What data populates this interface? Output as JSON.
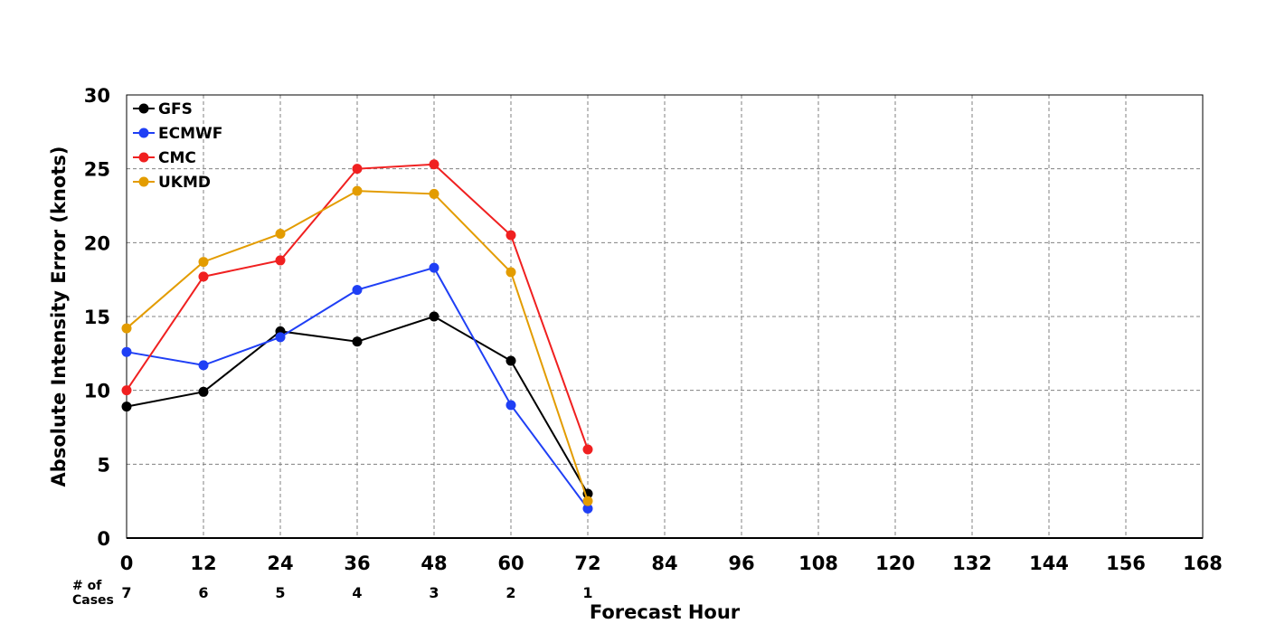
{
  "chart_data": {
    "type": "line",
    "title": "",
    "xlabel": "Forecast Hour",
    "ylabel": "Absolute Intensity Error (knots)",
    "xlim": [
      0,
      168
    ],
    "ylim": [
      0,
      30
    ],
    "x_ticks": [
      0,
      12,
      24,
      36,
      48,
      60,
      72,
      84,
      96,
      108,
      120,
      132,
      144,
      156,
      168
    ],
    "y_ticks": [
      0,
      5,
      10,
      15,
      20,
      25,
      30
    ],
    "grid": true,
    "legend_position": "top-left",
    "x": [
      0,
      12,
      24,
      36,
      48,
      60,
      72
    ],
    "series": [
      {
        "name": "GFS",
        "color": "#000000",
        "values": [
          8.9,
          9.9,
          14.0,
          13.3,
          15.0,
          12.0,
          3.0
        ]
      },
      {
        "name": "ECMWF",
        "color": "#1f3ff5",
        "values": [
          12.6,
          11.7,
          13.6,
          16.8,
          18.3,
          9.0,
          2.0
        ]
      },
      {
        "name": "CMC",
        "color": "#f02020",
        "values": [
          10.0,
          17.7,
          18.8,
          25.0,
          25.3,
          20.5,
          6.0
        ]
      },
      {
        "name": "UKMD",
        "color": "#e39c00",
        "values": [
          14.2,
          18.7,
          20.6,
          23.5,
          23.3,
          18.0,
          2.5
        ]
      }
    ],
    "cases_label": "# of Cases",
    "cases": [
      7,
      6,
      5,
      4,
      3,
      2,
      1
    ]
  }
}
